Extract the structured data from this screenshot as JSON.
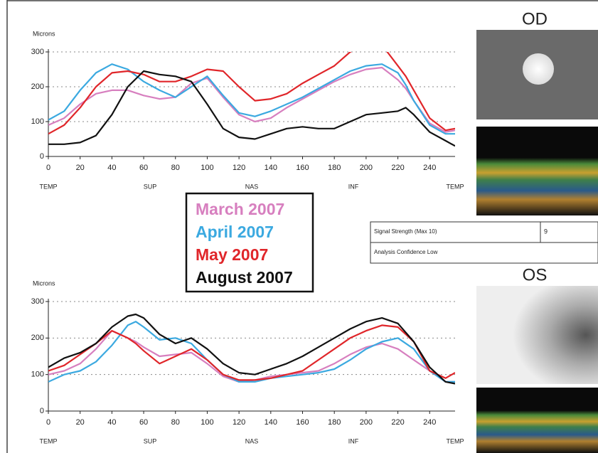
{
  "chart_data": [
    {
      "type": "line",
      "y_label": "Microns",
      "x": [
        0,
        10,
        20,
        30,
        40,
        50,
        60,
        70,
        80,
        90,
        100,
        110,
        120,
        130,
        140,
        150,
        160,
        170,
        180,
        190,
        200,
        210,
        220,
        225,
        230,
        240,
        250,
        256
      ],
      "xlim": [
        0,
        256
      ],
      "xticks": [
        0,
        20,
        40,
        60,
        80,
        100,
        120,
        140,
        160,
        180,
        200,
        220,
        240
      ],
      "xregions": [
        {
          "value": 0,
          "label": "TEMP"
        },
        {
          "value": 64,
          "label": "SUP"
        },
        {
          "value": 128,
          "label": "NAS"
        },
        {
          "value": 192,
          "label": "INF"
        },
        {
          "value": 256,
          "label": "TEMP"
        }
      ],
      "ylim": [
        0,
        300
      ],
      "yticks": [
        0,
        100,
        200,
        300
      ],
      "grid": true,
      "series": [
        {
          "name": "March 2007",
          "color": "#d77fbf",
          "values": [
            90,
            110,
            150,
            180,
            190,
            190,
            175,
            165,
            170,
            210,
            225,
            170,
            120,
            100,
            110,
            140,
            165,
            190,
            215,
            235,
            250,
            255,
            220,
            195,
            160,
            95,
            70,
            75
          ]
        },
        {
          "name": "April 2007",
          "color": "#3ba9e0",
          "values": [
            105,
            130,
            190,
            240,
            265,
            250,
            215,
            190,
            170,
            200,
            230,
            175,
            125,
            115,
            130,
            150,
            170,
            195,
            220,
            245,
            260,
            265,
            240,
            205,
            160,
            90,
            65,
            65
          ]
        },
        {
          "name": "May 2007",
          "color": "#e0262a",
          "values": [
            65,
            90,
            140,
            200,
            240,
            245,
            235,
            215,
            215,
            230,
            250,
            245,
            200,
            160,
            165,
            180,
            210,
            235,
            260,
            300,
            320,
            320,
            260,
            230,
            190,
            110,
            75,
            80
          ]
        },
        {
          "name": "August 2007",
          "color": "#111111",
          "values": [
            35,
            35,
            40,
            60,
            120,
            200,
            245,
            235,
            230,
            215,
            150,
            80,
            55,
            50,
            65,
            80,
            85,
            80,
            80,
            100,
            120,
            125,
            130,
            140,
            120,
            70,
            45,
            30
          ]
        }
      ]
    },
    {
      "type": "line",
      "y_label": "Microns",
      "x": [
        0,
        10,
        20,
        30,
        40,
        50,
        55,
        60,
        70,
        80,
        90,
        100,
        110,
        120,
        130,
        140,
        150,
        160,
        170,
        180,
        190,
        200,
        210,
        220,
        230,
        240,
        250,
        256
      ],
      "xlim": [
        0,
        256
      ],
      "xticks": [
        0,
        20,
        40,
        60,
        80,
        100,
        120,
        140,
        160,
        180,
        200,
        220,
        240
      ],
      "xregions": [
        {
          "value": 0,
          "label": "TEMP"
        },
        {
          "value": 64,
          "label": "SUP"
        },
        {
          "value": 128,
          "label": "NAS"
        },
        {
          "value": 192,
          "label": "INF"
        },
        {
          "value": 256,
          "label": "TEMP"
        }
      ],
      "ylim": [
        0,
        300
      ],
      "yticks": [
        0,
        100,
        200,
        300
      ],
      "grid": true,
      "series": [
        {
          "color": "#d77fbf",
          "values": [
            100,
            110,
            130,
            170,
            220,
            200,
            190,
            175,
            150,
            155,
            160,
            130,
            95,
            80,
            85,
            95,
            100,
            105,
            110,
            130,
            155,
            175,
            185,
            170,
            140,
            110,
            80,
            80
          ]
        },
        {
          "color": "#3ba9e0",
          "values": [
            80,
            100,
            110,
            135,
            180,
            235,
            245,
            230,
            195,
            200,
            185,
            140,
            100,
            80,
            80,
            90,
            95,
            100,
            105,
            115,
            140,
            170,
            190,
            200,
            170,
            110,
            80,
            80
          ]
        },
        {
          "color": "#e0262a",
          "values": [
            110,
            125,
            155,
            185,
            220,
            200,
            185,
            165,
            130,
            150,
            170,
            140,
            100,
            85,
            85,
            90,
            100,
            110,
            140,
            170,
            200,
            220,
            235,
            230,
            190,
            110,
            90,
            105
          ]
        },
        {
          "color": "#111111",
          "values": [
            120,
            145,
            160,
            185,
            230,
            260,
            265,
            255,
            210,
            185,
            200,
            170,
            130,
            105,
            100,
            115,
            130,
            150,
            175,
            200,
            225,
            245,
            255,
            240,
            190,
            120,
            80,
            75
          ]
        }
      ]
    }
  ],
  "panel": {
    "od": "OD",
    "os": "OS",
    "signal_label": "Signal Strength (Max 10)",
    "signal_value": "9",
    "confidence": "Analysis Confidence Low"
  }
}
